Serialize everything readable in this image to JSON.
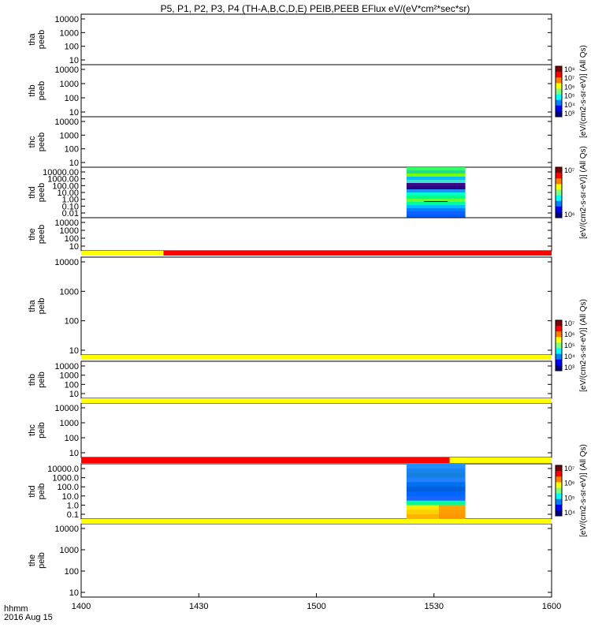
{
  "title": "P5, P1, P2, P3, P4 (TH-A,B,C,D,E) PEIB,PEEB EFlux eV/(eV*cm²*sec*sr)",
  "footer": {
    "label_line1": "hhmm",
    "label_line2": "2016 Aug 15"
  },
  "colors": {
    "flag_yellow": "#ffff00",
    "flag_red": "#ff0000",
    "frame": "#000000"
  },
  "chart_data": {
    "type": "heatmap",
    "x_axis": {
      "range": [
        "1400",
        "1600"
      ],
      "tick_labels": [
        "1400",
        "1430",
        "1500",
        "1530",
        "1600"
      ]
    },
    "panels": [
      {
        "id": "tha-peeb",
        "ylabel": [
          "tha",
          "peeb"
        ],
        "ytick_labels": [
          "10000",
          "1000",
          "100",
          "10"
        ],
        "has_data": false
      },
      {
        "id": "thb-peeb",
        "ylabel": [
          "thb",
          "peeb"
        ],
        "ytick_labels": [
          "10000",
          "1000",
          "100",
          "10"
        ],
        "has_data": false
      },
      {
        "id": "thc-peeb",
        "ylabel": [
          "thc",
          "peeb"
        ],
        "ytick_labels": [
          "10000",
          "1000",
          "100",
          "10"
        ],
        "has_data": false
      },
      {
        "id": "thd-peeb",
        "ylabel": [
          "thd",
          "peeb"
        ],
        "ytick_labels": [
          "10000.00",
          "1000.00",
          "100.00",
          "10.00",
          "1.00",
          "0.10",
          "0.01"
        ],
        "has_data": true,
        "data_time_range": [
          "1523",
          "1538"
        ]
      },
      {
        "id": "the-peeb",
        "ylabel": [
          "the",
          "peeb"
        ],
        "ytick_labels": [
          "10000",
          "1000",
          "100",
          "10"
        ],
        "has_data": false
      },
      {
        "id": "tha-peib",
        "ylabel": [
          "tha",
          "peib"
        ],
        "ytick_labels": [
          "10000",
          "1000",
          "100",
          "10"
        ],
        "has_data": false
      },
      {
        "id": "thb-peib",
        "ylabel": [
          "thb",
          "peib"
        ],
        "ytick_labels": [
          "10000",
          "1000",
          "100",
          "10"
        ],
        "has_data": false
      },
      {
        "id": "thc-peib",
        "ylabel": [
          "thc",
          "peib"
        ],
        "ytick_labels": [
          "10000",
          "1000",
          "100",
          "10"
        ],
        "has_data": false
      },
      {
        "id": "thd-peib",
        "ylabel": [
          "thd",
          "peib"
        ],
        "ytick_labels": [
          "10000.0",
          "1000.0",
          "100.0",
          "10.0",
          "1.0",
          "0.1"
        ],
        "has_data": true,
        "data_time_range": [
          "1523",
          "1538"
        ]
      },
      {
        "id": "the-peib",
        "ylabel": [
          "the",
          "peib"
        ],
        "ytick_labels": [
          "10000",
          "1000",
          "100",
          "10"
        ],
        "has_data": false
      }
    ],
    "colorbars": [
      {
        "id": "cb1",
        "title": "[eV/(cm2-s-sr-eV)] (All Qs)",
        "tick_labels": [
          "10⁸",
          "10⁷",
          "10⁶",
          "10⁵",
          "10⁴",
          "10³"
        ]
      },
      {
        "id": "cb2",
        "title": "[eV/(cm2-s-sr-eV)] (All Qs)",
        "tick_labels": [
          "10⁷",
          "10⁶"
        ]
      },
      {
        "id": "cb3",
        "title": "[eV/(cm2-s-sr-eV)] (All Qs)",
        "tick_labels": [
          "10⁷",
          "10⁶",
          "10⁵",
          "10⁴",
          "10³"
        ]
      },
      {
        "id": "cb4",
        "title": "[eV/(cm2-s-sr-eV)] (All Qs)",
        "tick_labels": [
          "10⁷",
          "10⁶",
          "10⁵",
          "10⁴"
        ]
      }
    ],
    "quality_flags": [
      {
        "segments": [
          {
            "color": "yellow",
            "from": "1400",
            "to": "1421"
          },
          {
            "color": "red",
            "from": "1421",
            "to": "1600"
          }
        ]
      },
      {
        "segments": [
          {
            "color": "yellow",
            "from": "1400",
            "to": "1600"
          }
        ]
      },
      {
        "segments": [
          {
            "color": "yellow",
            "from": "1400",
            "to": "1600"
          }
        ]
      },
      {
        "segments": [
          {
            "color": "red",
            "from": "1400",
            "to": "1534"
          },
          {
            "color": "yellow",
            "from": "1534",
            "to": "1600"
          }
        ]
      },
      {
        "segments": [
          {
            "color": "yellow",
            "from": "1400",
            "to": "1600"
          }
        ]
      }
    ]
  }
}
